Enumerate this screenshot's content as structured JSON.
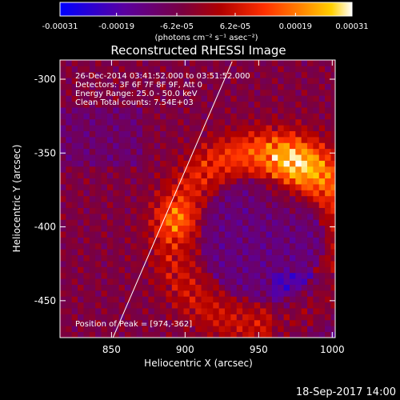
{
  "chart_data": {
    "type": "heatmap",
    "title": "Reconstructed RHESSI Image",
    "xlabel": "Heliocentric X (arcsec)",
    "ylabel": "Heliocentric Y (arcsec)",
    "xlim": [
      815,
      1002
    ],
    "ylim": [
      -475,
      -287
    ],
    "x_ticks": [
      850,
      900,
      950,
      1000
    ],
    "y_ticks": [
      -300,
      -350,
      -400,
      -450
    ],
    "colorbar": {
      "min": -0.00031,
      "max": 0.00031,
      "ticks": [
        -0.00031,
        -0.00019,
        -6.2e-05,
        6.2e-05,
        0.00019,
        0.00031
      ],
      "tick_labels": [
        "-0.00031",
        "-0.00019",
        "-6.2e-05",
        "6.2e-05",
        "0.00019",
        "0.00031"
      ],
      "unit": "(photons cm⁻² s⁻¹ asec⁻²)",
      "colors": [
        "#0000ff",
        "#5a00a0",
        "#7a0040",
        "#b00000",
        "#ff3000",
        "#ff8000",
        "#ffd000",
        "#ffffff"
      ]
    },
    "annotations": [
      "26-Dec-2014 03:41:52.000 to 03:51:52.000",
      "Detectors: 3F 6F 7F 8F 9F, Att 0",
      "Energy Range: 25.0 - 50.0 keV",
      "Clean    Total counts: 7.54E+03"
    ],
    "peak_label": "Position of Peak = [974,-362]",
    "peak": [
      974,
      -362
    ],
    "limb_line": [
      [
        851,
        -475
      ],
      [
        932,
        -288
      ]
    ],
    "grid": false
  },
  "timestamp": "18-Sep-2017 14:00"
}
